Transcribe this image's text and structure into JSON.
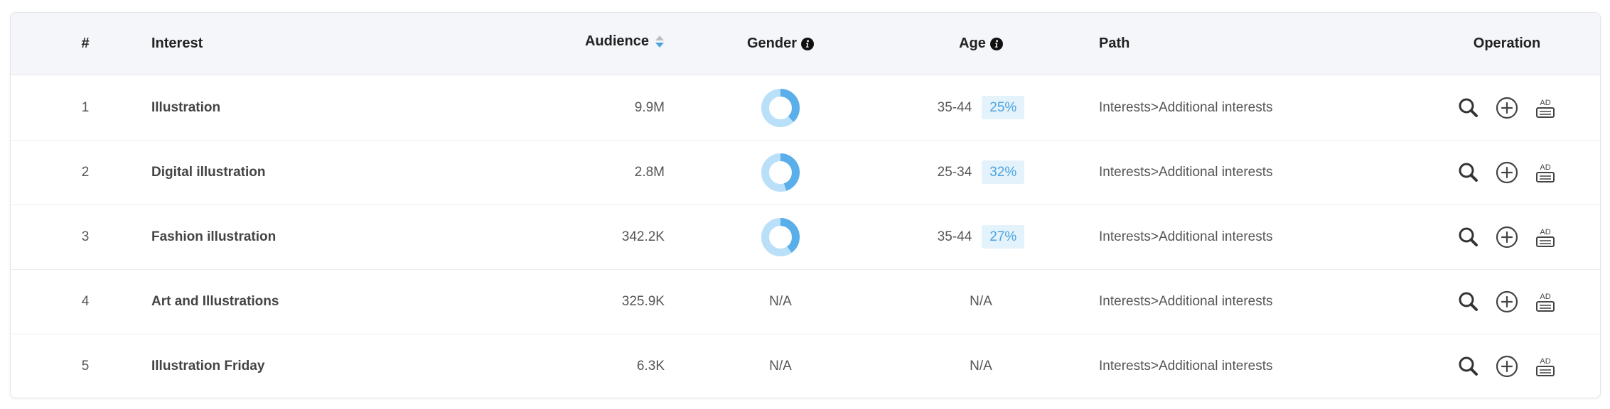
{
  "columns": {
    "num": "#",
    "interest": "Interest",
    "audience": "Audience",
    "gender": "Gender",
    "age": "Age",
    "path": "Path",
    "operation": "Operation"
  },
  "rows": [
    {
      "num": "1",
      "interest": "Illustration",
      "audience": "9.9M",
      "gender_share": 0.38,
      "gender_text": "",
      "age_range": "35-44",
      "age_pct": "25%",
      "age_na": "",
      "path": "Interests>Additional interests"
    },
    {
      "num": "2",
      "interest": "Digital illustration",
      "audience": "2.8M",
      "gender_share": 0.45,
      "gender_text": "",
      "age_range": "25-34",
      "age_pct": "32%",
      "age_na": "",
      "path": "Interests>Additional interests"
    },
    {
      "num": "3",
      "interest": "Fashion illustration",
      "audience": "342.2K",
      "gender_share": 0.4,
      "gender_text": "",
      "age_range": "35-44",
      "age_pct": "27%",
      "age_na": "",
      "path": "Interests>Additional interests"
    },
    {
      "num": "4",
      "interest": "Art and Illustrations",
      "audience": "325.9K",
      "gender_share": null,
      "gender_text": "N/A",
      "age_range": "",
      "age_pct": "",
      "age_na": "N/A",
      "path": "Interests>Additional interests"
    },
    {
      "num": "5",
      "interest": "Illustration Friday",
      "audience": "6.3K",
      "gender_share": null,
      "gender_text": "N/A",
      "age_range": "",
      "age_pct": "",
      "age_na": "N/A",
      "path": "Interests>Additional interests"
    }
  ],
  "icons": {
    "sort": "sort-icon",
    "info": "info-icon",
    "search": "search-icon",
    "add": "add-circle-icon",
    "ad": "ad-icon"
  },
  "colors": {
    "donut_primary": "#5aaeea",
    "donut_secondary": "#b9e0f8",
    "sort_up": "#b9bfc7",
    "sort_down": "#4ea4de",
    "badge_bg": "#e3f2fb",
    "badge_text": "#4ea4de"
  },
  "operation_icon_label": "AD"
}
